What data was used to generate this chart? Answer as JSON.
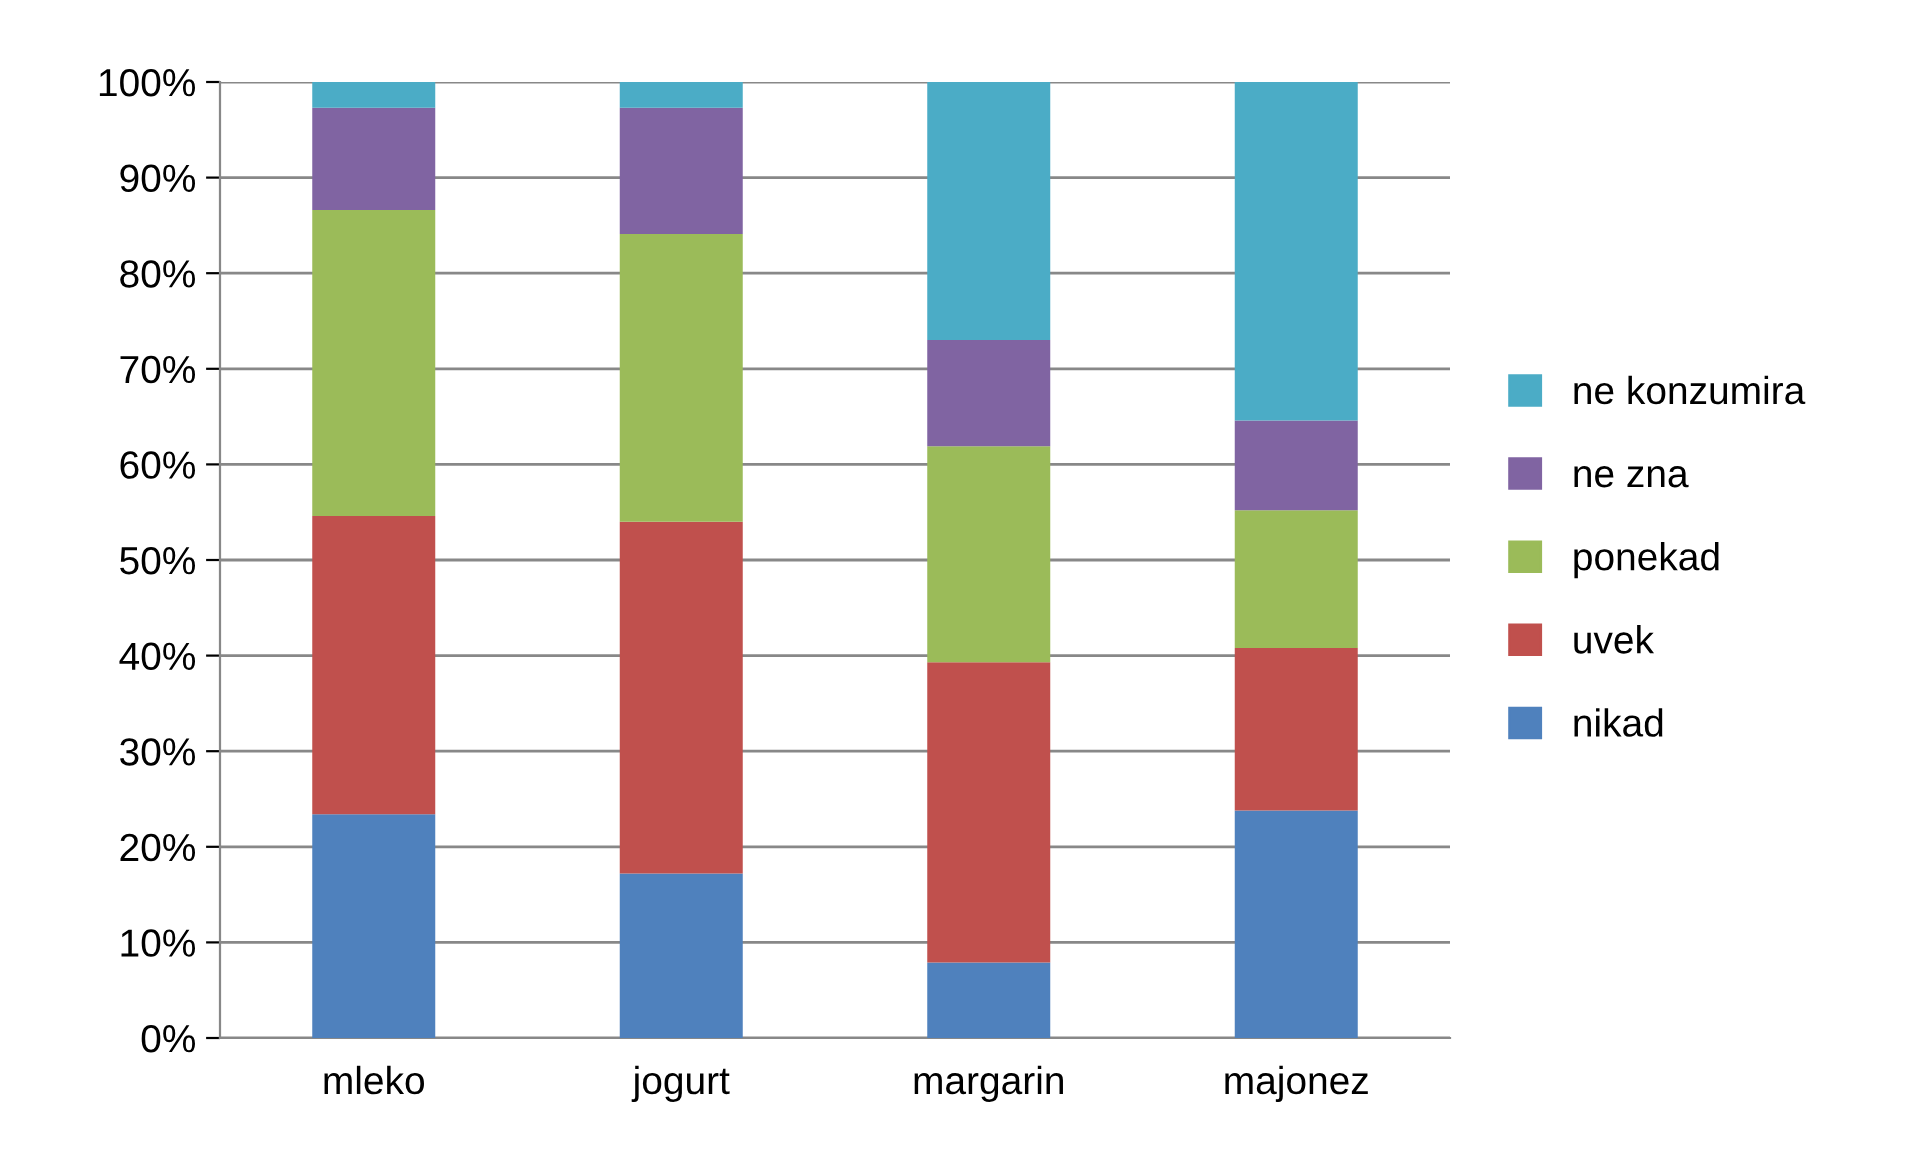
{
  "chart_data": {
    "type": "bar",
    "stacked": true,
    "categories": [
      "mleko",
      "jogurt",
      "margarin",
      "majonez"
    ],
    "series": [
      {
        "name": "nikad",
        "color": "#4f81bd",
        "values": [
          23.4,
          17.2,
          7.9,
          23.8
        ]
      },
      {
        "name": "uvek",
        "color": "#c0504d",
        "values": [
          31.2,
          36.8,
          31.4,
          17.0
        ]
      },
      {
        "name": "ponekad",
        "color": "#9bbb59",
        "values": [
          32.0,
          30.1,
          22.6,
          14.4
        ]
      },
      {
        "name": "ne zna",
        "color": "#8064a2",
        "values": [
          10.7,
          13.2,
          11.1,
          9.4
        ]
      },
      {
        "name": "ne konzumira",
        "color": "#4bacc6",
        "values": [
          2.7,
          2.7,
          27.0,
          35.4
        ]
      }
    ],
    "ylim": [
      0,
      100
    ],
    "yticks": [
      {
        "value": 0,
        "label": "0%"
      },
      {
        "value": 10,
        "label": "10%"
      },
      {
        "value": 20,
        "label": "20%"
      },
      {
        "value": 30,
        "label": "30%"
      },
      {
        "value": 40,
        "label": "40%"
      },
      {
        "value": 50,
        "label": "50%"
      },
      {
        "value": 60,
        "label": "60%"
      },
      {
        "value": 70,
        "label": "70%"
      },
      {
        "value": 80,
        "label": "80%"
      },
      {
        "value": 90,
        "label": "90%"
      },
      {
        "value": 100,
        "label": "100%"
      }
    ],
    "grid": "y",
    "legend": "right"
  }
}
